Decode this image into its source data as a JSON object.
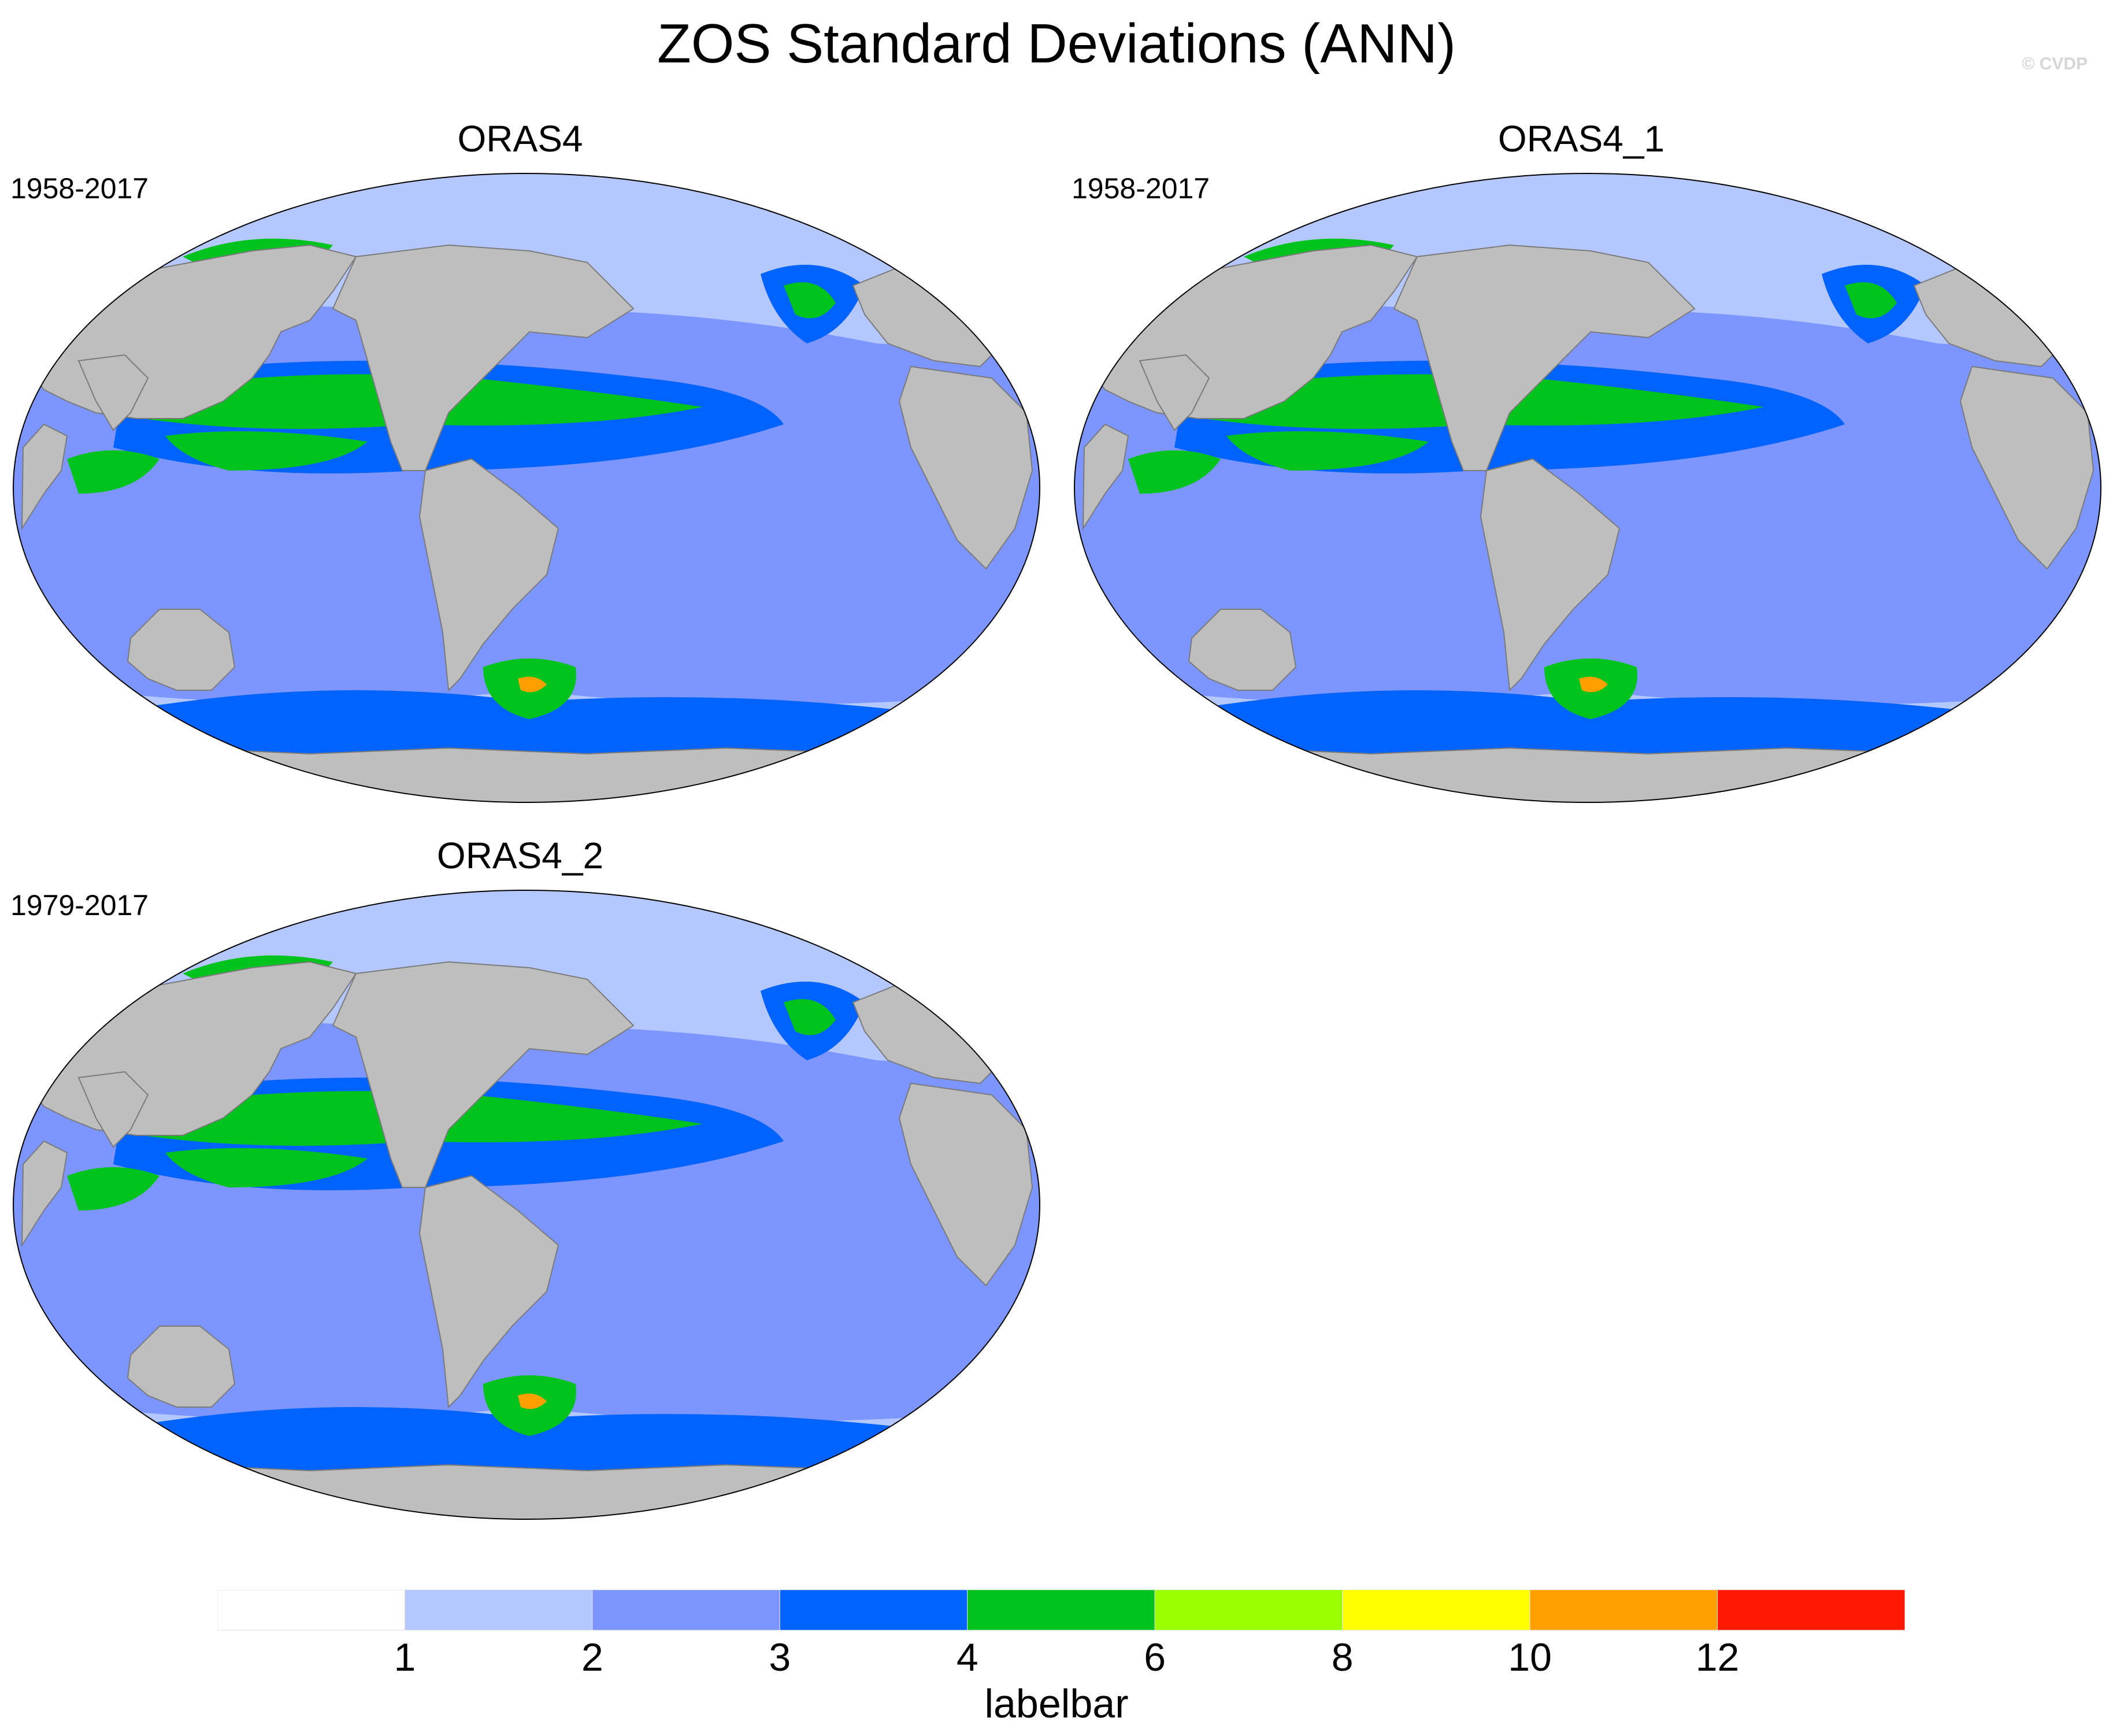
{
  "title": "ZOS Standard Deviations (ANN)",
  "credit": "© CVDP",
  "panels": [
    {
      "name": "ORAS4",
      "period": "1958-2017"
    },
    {
      "name": "ORAS4_1",
      "period": "1958-2017"
    },
    {
      "name": "ORAS4_2",
      "period": "1979-2017"
    }
  ],
  "colors": {
    "land": "#bebebe",
    "ocean_bins": [
      "#ffffff",
      "#b4c8ff",
      "#7d96ff",
      "#0062ff",
      "#00c31e",
      "#99ff00",
      "#ffff00",
      "#ffa000",
      "#ff1900"
    ]
  },
  "labelbar": {
    "title": "labelbar",
    "ticks": [
      "1",
      "2",
      "3",
      "4",
      "6",
      "8",
      "10",
      "12"
    ]
  }
}
